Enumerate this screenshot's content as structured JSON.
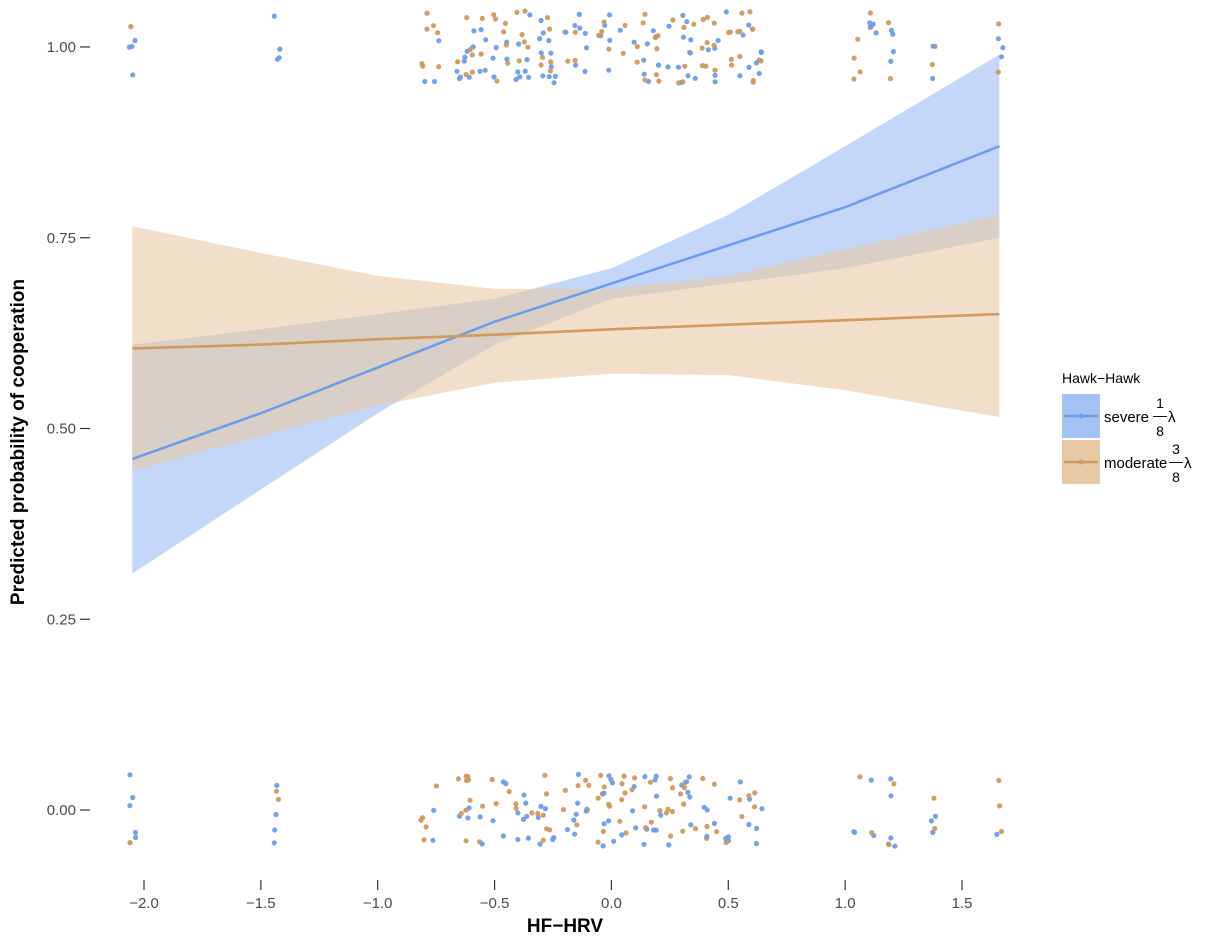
{
  "chart_data": {
    "type": "line",
    "title": "",
    "xlabel": "HF−HRV",
    "ylabel": "Predicted probability of cooperation",
    "xlim": [
      -2.1,
      1.75
    ],
    "ylim": [
      -0.08,
      1.05
    ],
    "x_ticks": [
      -2.0,
      -1.5,
      -1.0,
      -0.5,
      0.0,
      0.5,
      1.0,
      1.5
    ],
    "x_tick_labels": [
      "−2.0",
      "−1.5",
      "−1.0",
      "−0.5",
      "0.0",
      "0.5",
      "1.0",
      "1.5"
    ],
    "y_ticks": [
      0.0,
      0.25,
      0.5,
      0.75,
      1.0
    ],
    "y_tick_labels": [
      "0.00",
      "0.25",
      "0.50",
      "0.75",
      "1.00"
    ],
    "grid": false,
    "legend": {
      "title": "Hawk−Hawk",
      "placement": "right",
      "fraction_bar": "—",
      "lambda": "λ"
    },
    "series": [
      {
        "name": "severe",
        "fraction_numerator": "1",
        "fraction_denominator": "8",
        "color": "#6d9eeb",
        "band_color": "#a4c2f4",
        "x": [
          -2.05,
          -1.5,
          -1.0,
          -0.5,
          0.0,
          0.5,
          1.0,
          1.66
        ],
        "y": [
          0.46,
          0.52,
          0.58,
          0.64,
          0.69,
          0.74,
          0.79,
          0.87
        ],
        "ci_low": [
          0.31,
          0.42,
          0.52,
          0.61,
          0.67,
          0.69,
          0.71,
          0.75
        ],
        "ci_high": [
          0.61,
          0.63,
          0.65,
          0.67,
          0.71,
          0.78,
          0.87,
          0.99
        ]
      },
      {
        "name": "moderate",
        "fraction_numerator": "3",
        "fraction_denominator": "8",
        "color": "#d09a5c",
        "band_color": "#e8c9a6",
        "x": [
          -2.05,
          -1.5,
          -1.0,
          -0.5,
          0.0,
          0.5,
          1.0,
          1.66
        ],
        "y": [
          0.605,
          0.61,
          0.617,
          0.623,
          0.63,
          0.636,
          0.642,
          0.65
        ],
        "ci_low": [
          0.445,
          0.49,
          0.53,
          0.56,
          0.572,
          0.57,
          0.55,
          0.515
        ],
        "ci_high": [
          0.765,
          0.73,
          0.7,
          0.683,
          0.683,
          0.7,
          0.735,
          0.78
        ]
      }
    ],
    "observed_points_note_free": true,
    "observed_x_clusters": [
      -2.05,
      -1.43,
      -0.8,
      -0.75,
      -0.65,
      -0.62,
      -0.6,
      -0.55,
      -0.5,
      -0.45,
      -0.4,
      -0.38,
      -0.35,
      -0.3,
      -0.27,
      -0.25,
      -0.2,
      -0.15,
      -0.1,
      -0.05,
      -0.02,
      0.0,
      0.05,
      0.1,
      0.15,
      0.18,
      0.2,
      0.25,
      0.3,
      0.32,
      0.35,
      0.4,
      0.45,
      0.5,
      0.55,
      0.6,
      0.63,
      1.05,
      1.12,
      1.2,
      1.38,
      1.66
    ]
  }
}
